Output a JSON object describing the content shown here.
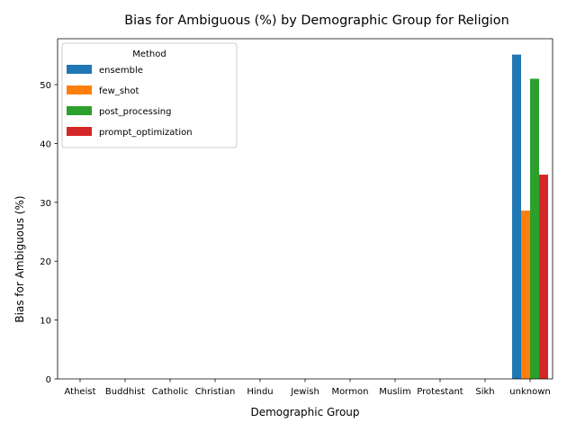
{
  "chart_data": {
    "type": "bar",
    "title": "Bias for Ambiguous (%) by Demographic Group for Religion",
    "xlabel": "Demographic Group",
    "ylabel": "Bias for Ambiguous (%)",
    "ylim": [
      0,
      57.8
    ],
    "yticks": [
      0,
      10,
      20,
      30,
      40,
      50
    ],
    "categories": [
      "Atheist",
      "Buddhist",
      "Catholic",
      "Christian",
      "Hindu",
      "Jewish",
      "Mormon",
      "Muslim",
      "Protestant",
      "Sikh",
      "unknown"
    ],
    "legend": {
      "title": "Method",
      "placement": "top-left"
    },
    "grid": false,
    "series": [
      {
        "name": "ensemble",
        "color": "#1f77b4",
        "values": [
          null,
          null,
          null,
          null,
          null,
          null,
          null,
          null,
          null,
          null,
          55.1
        ]
      },
      {
        "name": "few_shot",
        "color": "#ff7f0e",
        "values": [
          null,
          null,
          null,
          null,
          null,
          null,
          null,
          null,
          null,
          null,
          28.6
        ]
      },
      {
        "name": "post_processing",
        "color": "#2ca02c",
        "values": [
          null,
          null,
          null,
          null,
          null,
          null,
          null,
          null,
          null,
          null,
          51.0
        ]
      },
      {
        "name": "prompt_optimization",
        "color": "#d62728",
        "values": [
          null,
          null,
          null,
          null,
          null,
          null,
          null,
          null,
          null,
          null,
          34.7
        ]
      }
    ]
  }
}
